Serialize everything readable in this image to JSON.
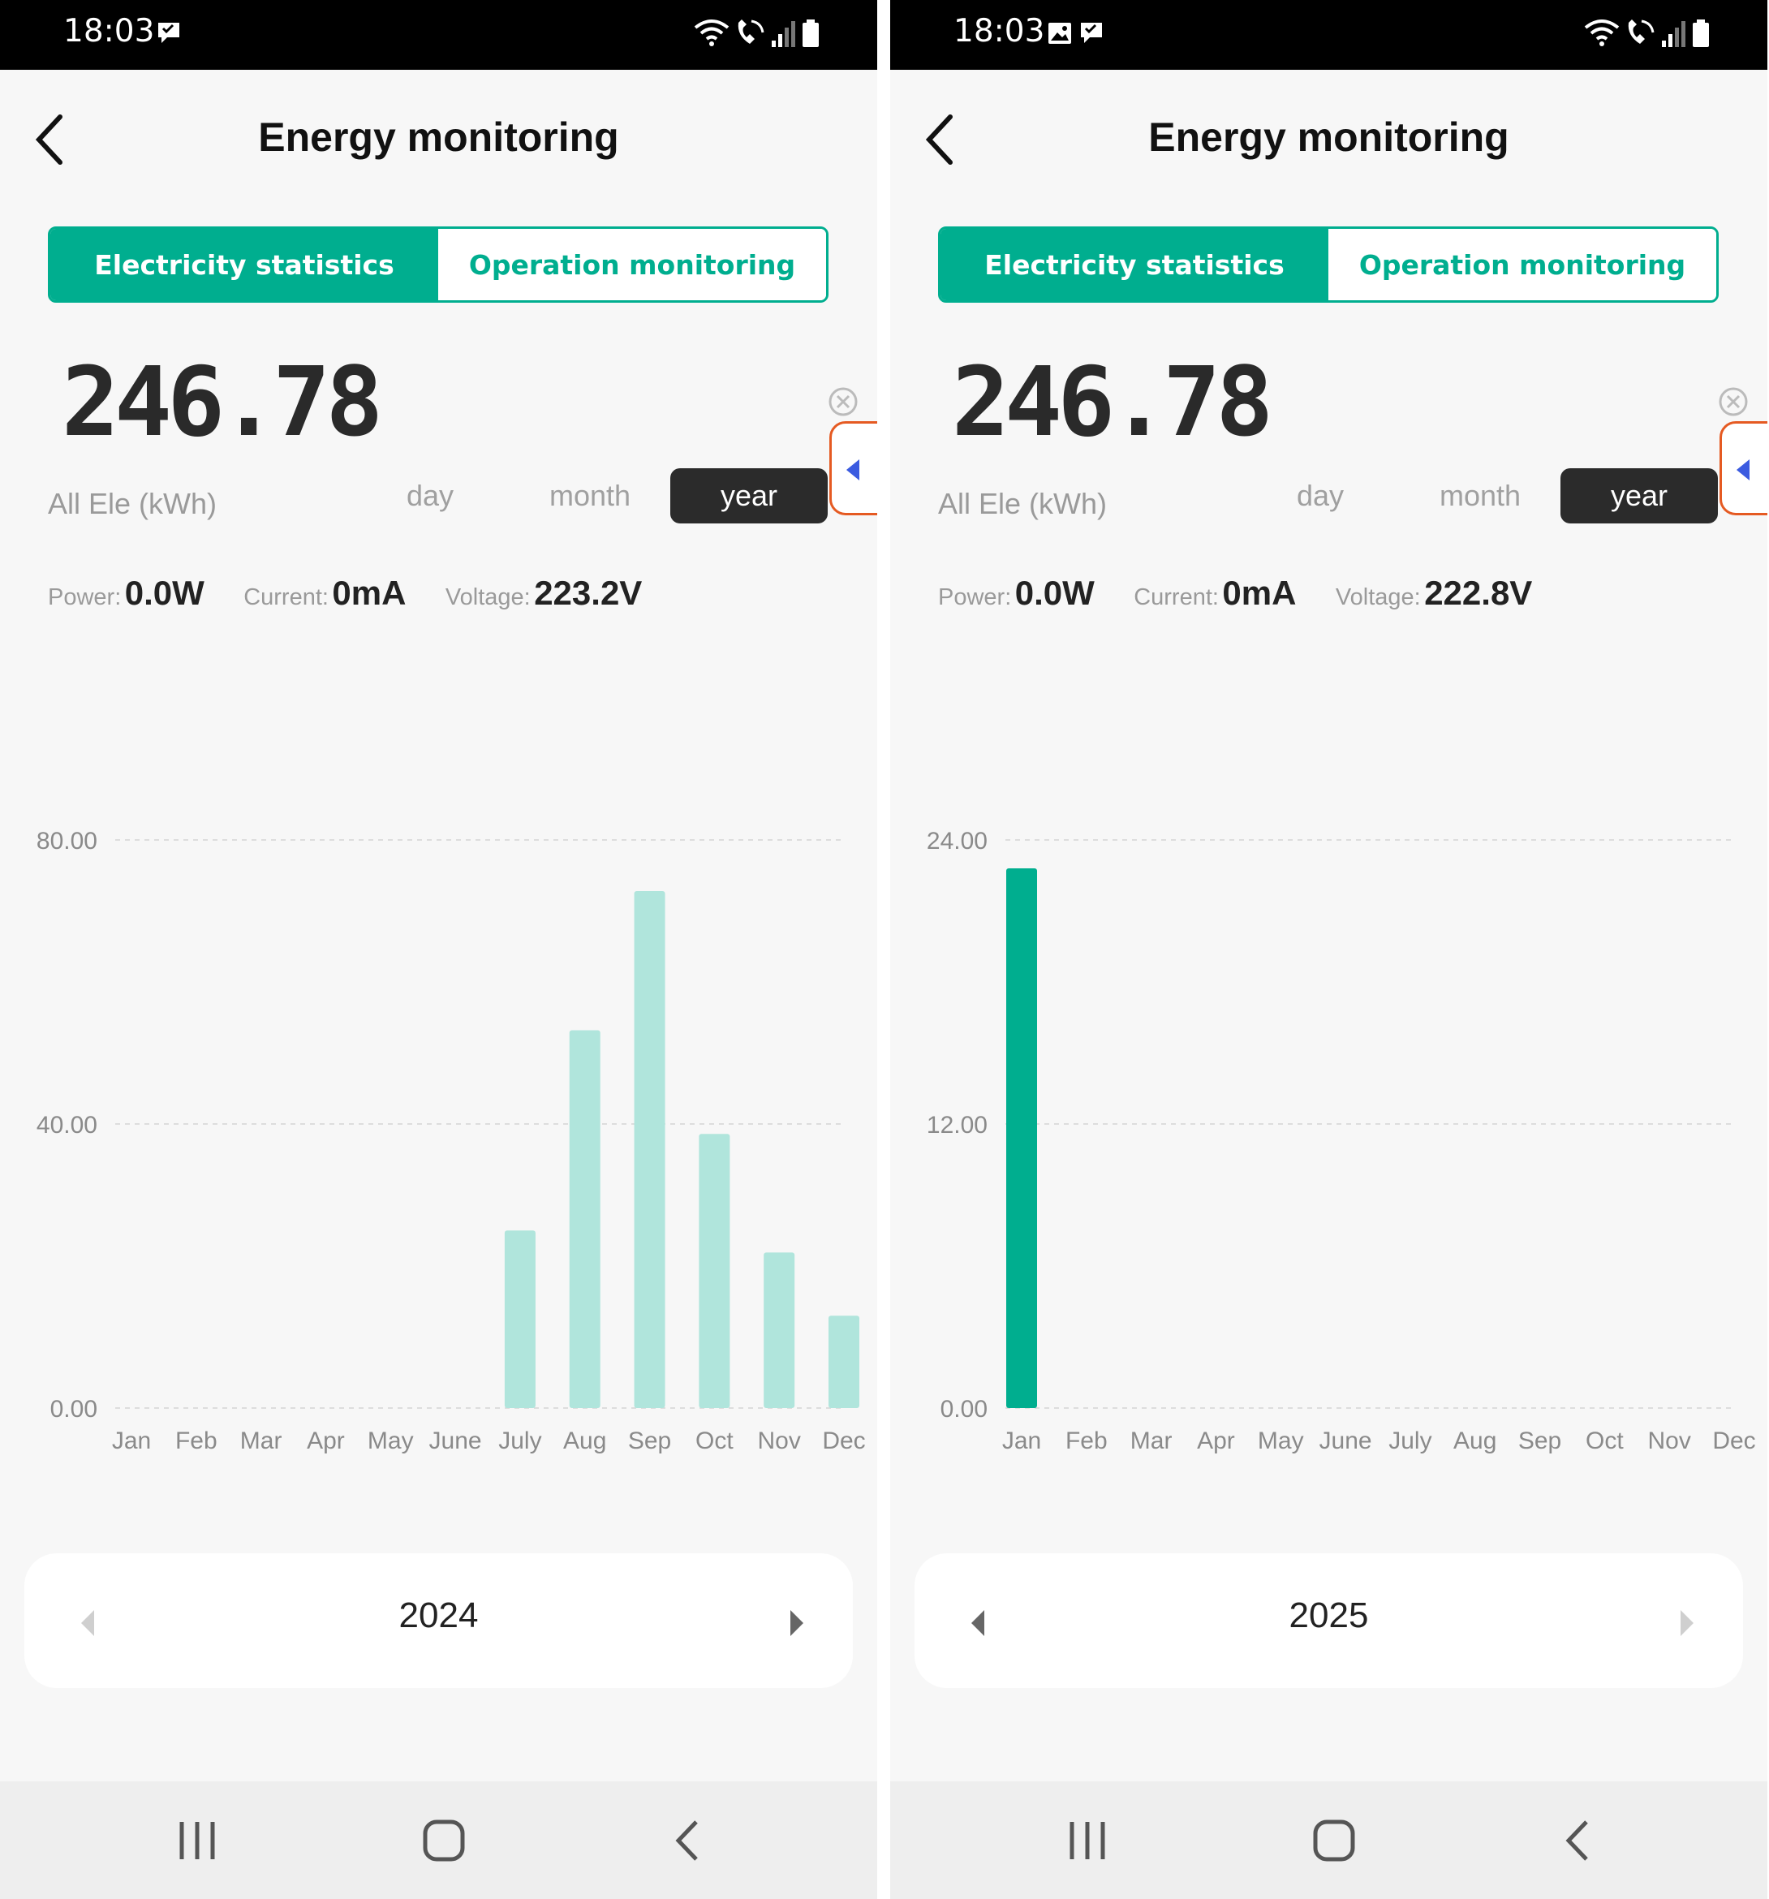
{
  "colors": {
    "accent": "#00ae8f",
    "bar_light": "#b0e5dc",
    "bar_dark": "#00ae8f",
    "handle_border": "#e55a22",
    "handle_arrow": "#3b5be0",
    "status_bar": "#000000"
  },
  "screens": [
    {
      "status": {
        "time": "18:03",
        "left_icons": [
          "chat-notification-icon"
        ],
        "right_icons": [
          "wifi-icon",
          "wifi-calling-icon",
          "signal-icon",
          "battery-icon"
        ]
      },
      "header": {
        "title": "Energy monitoring",
        "back_icon": "chevron-left-icon"
      },
      "tabs": [
        "Electricity statistics",
        "Operation monitoring"
      ],
      "active_tab": 0,
      "summary": {
        "total": "246.78",
        "label": "All Ele (kWh)"
      },
      "periods": [
        "day",
        "month",
        "year"
      ],
      "selected_period": "year",
      "readings": [
        {
          "label": "Power:",
          "value": "0.0W"
        },
        {
          "label": "Current:",
          "value": "0mA"
        },
        {
          "label": "Voltage:",
          "value": "223.2V"
        }
      ],
      "year_nav": {
        "year": "2024",
        "prev_icon": "triangle-left-icon",
        "next_icon": "triangle-right-icon"
      },
      "chart_data": {
        "type": "bar",
        "categories": [
          "Jan",
          "Feb",
          "Mar",
          "Apr",
          "May",
          "June",
          "July",
          "Aug",
          "Sep",
          "Oct",
          "Nov",
          "Dec"
        ],
        "values": [
          0,
          0,
          0,
          0,
          0,
          0,
          25.0,
          53.2,
          72.8,
          38.6,
          21.9,
          13.0
        ],
        "ylim": [
          0,
          80
        ],
        "yticks": [
          "0.00",
          "40.00",
          "80.00"
        ],
        "grid": true,
        "bar_color": "#b0e5dc"
      }
    },
    {
      "status": {
        "time": "18:03",
        "left_icons": [
          "image-notification-icon",
          "chat-notification-icon"
        ],
        "right_icons": [
          "wifi-icon",
          "wifi-calling-icon",
          "signal-icon",
          "battery-icon"
        ]
      },
      "header": {
        "title": "Energy monitoring",
        "back_icon": "chevron-left-icon"
      },
      "tabs": [
        "Electricity statistics",
        "Operation monitoring"
      ],
      "active_tab": 0,
      "summary": {
        "total": "246.78",
        "label": "All Ele (kWh)"
      },
      "periods": [
        "day",
        "month",
        "year"
      ],
      "selected_period": "year",
      "readings": [
        {
          "label": "Power:",
          "value": "0.0W"
        },
        {
          "label": "Current:",
          "value": "0mA"
        },
        {
          "label": "Voltage:",
          "value": "222.8V"
        }
      ],
      "year_nav": {
        "year": "2025",
        "prev_icon": "triangle-left-icon",
        "next_icon": "triangle-right-icon"
      },
      "chart_data": {
        "type": "bar",
        "categories": [
          "Jan",
          "Feb",
          "Mar",
          "Apr",
          "May",
          "June",
          "July",
          "Aug",
          "Sep",
          "Oct",
          "Nov",
          "Dec"
        ],
        "values": [
          22.8,
          0,
          0,
          0,
          0,
          0,
          0,
          0,
          0,
          0,
          0,
          0
        ],
        "ylim": [
          0,
          24
        ],
        "yticks": [
          "0.00",
          "12.00",
          "24.00"
        ],
        "grid": true,
        "bar_color": "#00ae8f"
      }
    }
  ]
}
